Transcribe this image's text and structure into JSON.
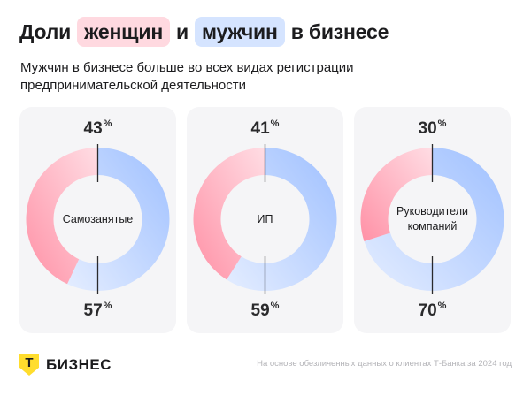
{
  "header": {
    "title_part1": "Доли",
    "title_women": "женщин",
    "title_and": "и",
    "title_men": "мужчин",
    "title_part2": "в бизнесе",
    "subtitle": "Мужчин в бизнесе больше во всех видах регистрации предпринимательской деятельности"
  },
  "colors": {
    "women": "#ff91a6",
    "men": "#9fc0ff",
    "women_pill": "#ffd9e0",
    "men_pill": "#d5e4ff",
    "card_bg": "#f5f5f7",
    "logo_yellow": "#ffdd2d"
  },
  "chart_data": [
    {
      "type": "pie",
      "center_label": "Самозанятые",
      "slices": [
        {
          "name": "женщин",
          "value": 43,
          "label": "43%"
        },
        {
          "name": "мужчин",
          "value": 57,
          "label": "57%"
        }
      ]
    },
    {
      "type": "pie",
      "center_label": "ИП",
      "slices": [
        {
          "name": "женщин",
          "value": 41,
          "label": "41%"
        },
        {
          "name": "мужчин",
          "value": 59,
          "label": "59%"
        }
      ]
    },
    {
      "type": "pie",
      "center_label": "Руководители компаний",
      "slices": [
        {
          "name": "женщин",
          "value": 30,
          "label": "30%"
        },
        {
          "name": "мужчин",
          "value": 70,
          "label": "70%"
        }
      ]
    }
  ],
  "units": {
    "percent": "%"
  },
  "footer": {
    "logo_glyph": "Т",
    "logo_text": "БИЗНЕС",
    "source_note": "На основе обезличенных данных о клиентах Т-Банка за 2024 год"
  }
}
